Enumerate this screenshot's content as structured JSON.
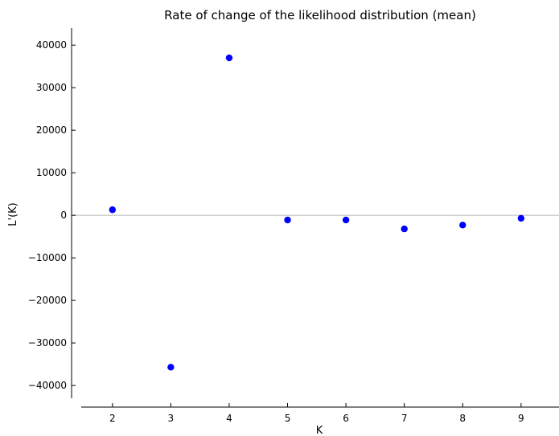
{
  "chart_data": {
    "type": "scatter",
    "title": "Rate of change of the likelihood distribution (mean)",
    "xlabel": "K",
    "ylabel": "L'(K)",
    "xlim": [
      1.3,
      9.65
    ],
    "ylim": [
      -43000,
      44000
    ],
    "xticks": [
      2,
      3,
      4,
      5,
      6,
      7,
      8,
      9
    ],
    "yticks": [
      40000,
      30000,
      20000,
      10000,
      0,
      -10000,
      -20000,
      -30000,
      -40000
    ],
    "ytick_labels": [
      "40000",
      "30000",
      "20000",
      "10000",
      "0",
      "−10000",
      "−20000",
      "−30000",
      "−40000"
    ],
    "reference_line_y": 0,
    "grid": false,
    "legend": "none",
    "marker_color": "#0000ff",
    "reference_line_color": "#b8b8b8",
    "points": [
      {
        "x": 2,
        "y": 1300
      },
      {
        "x": 3,
        "y": -35700
      },
      {
        "x": 4,
        "y": 37000
      },
      {
        "x": 5,
        "y": -1100
      },
      {
        "x": 6,
        "y": -1100
      },
      {
        "x": 7,
        "y": -3200
      },
      {
        "x": 8,
        "y": -2300
      },
      {
        "x": 9,
        "y": -700
      }
    ]
  }
}
